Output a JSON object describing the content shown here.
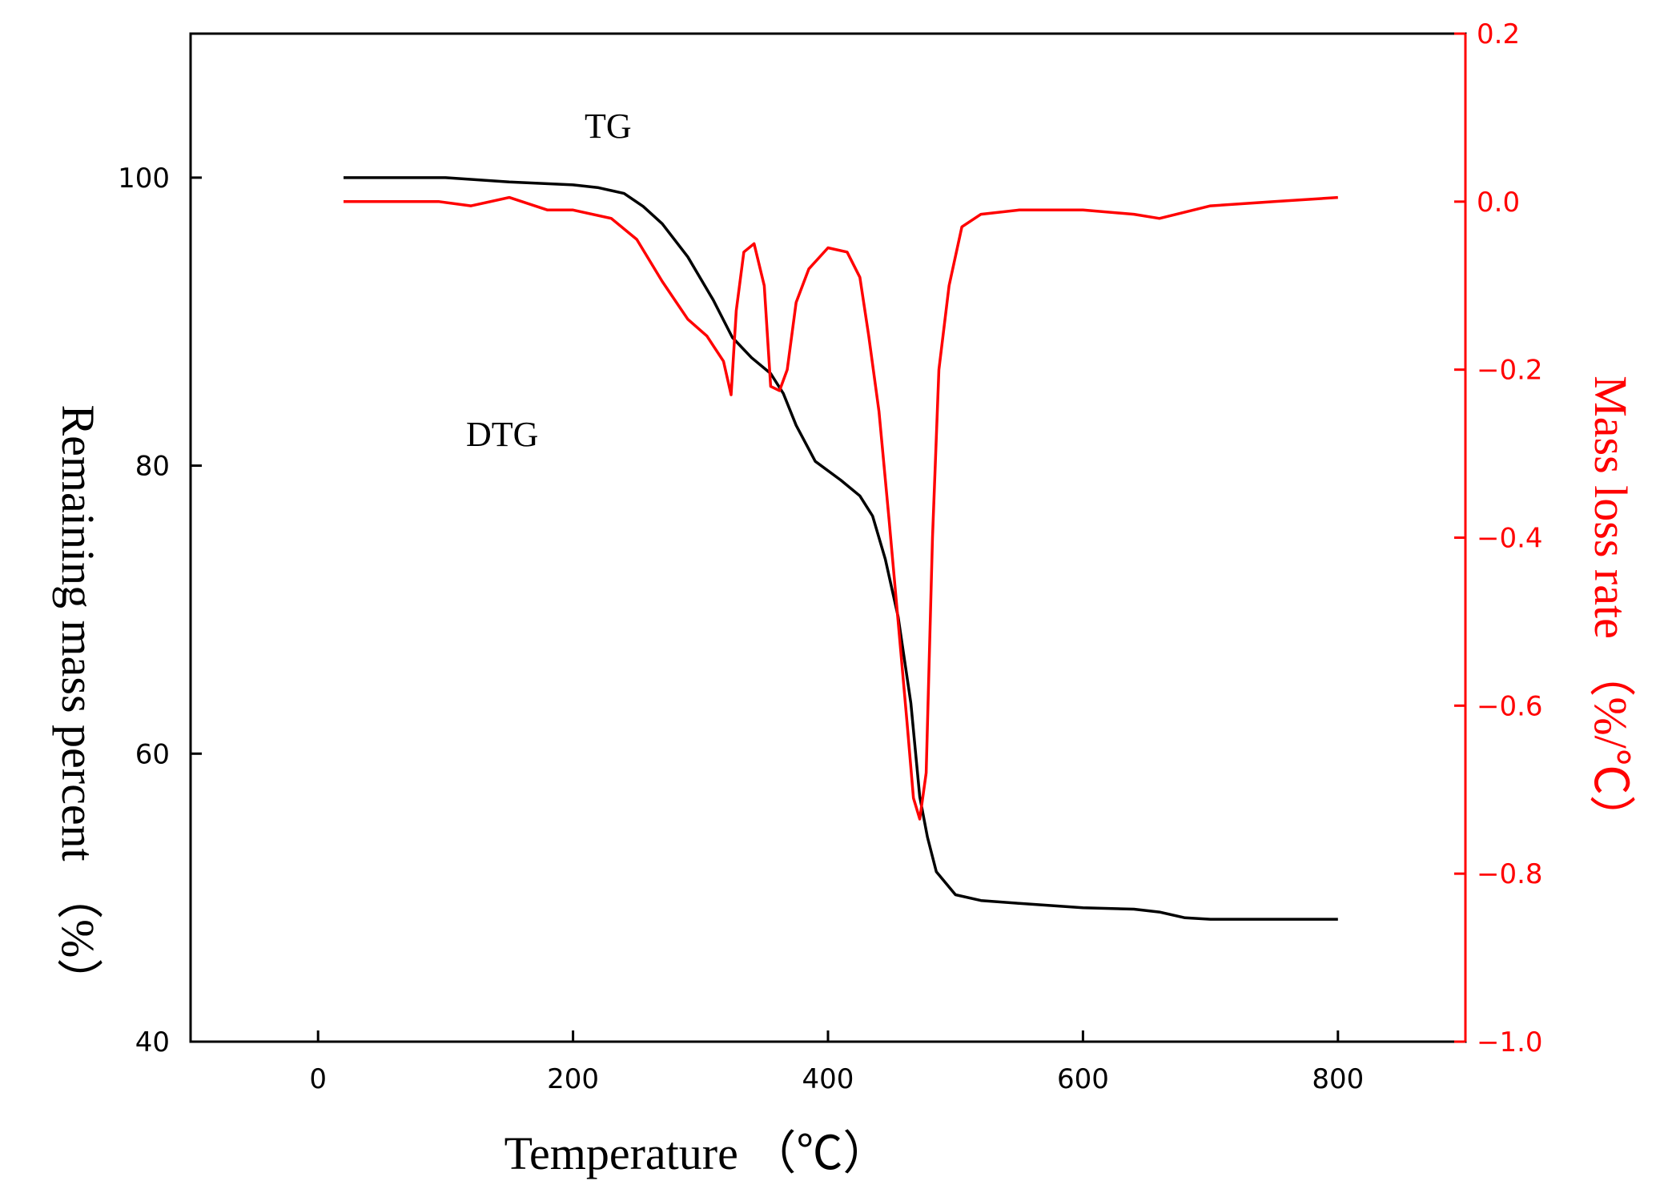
{
  "colors": {
    "tg_line": "#000000",
    "dtg_line": "#ff0000",
    "right_axis": "#ff0000",
    "frame": "#000000",
    "background": "#ffffff"
  },
  "chart_data": {
    "type": "line",
    "xlabel": "Temperature （℃）",
    "ylabel_left": "Remaining mass percent （%）",
    "ylabel_right": "Mass loss rate （%/℃）",
    "xlim": [
      -100,
      900
    ],
    "ylim_left": [
      40,
      110
    ],
    "ylim_right": [
      -1.0,
      0.2
    ],
    "x_ticks": [
      0,
      200,
      400,
      600,
      800
    ],
    "y_left_ticks": [
      40,
      60,
      80,
      100
    ],
    "y_right_ticks": [
      "0.2",
      "0.0",
      "−0.2",
      "−0.4",
      "−0.6",
      "−0.8",
      "−1.0"
    ],
    "grid": false,
    "annotations": [
      "TG",
      "DTG"
    ],
    "series": [
      {
        "axis": "left",
        "x": [
          20,
          100,
          150,
          200,
          220,
          240,
          255,
          270,
          290,
          310,
          325,
          340,
          355,
          365,
          375,
          390,
          410,
          425,
          435,
          445,
          455,
          465,
          472,
          478,
          485,
          500,
          520,
          550,
          600,
          640,
          660,
          680,
          700,
          750,
          800
        ],
        "values": [
          100.0,
          100.0,
          99.7,
          99.5,
          99.3,
          98.9,
          98.0,
          96.8,
          94.5,
          91.5,
          88.9,
          87.5,
          86.4,
          85.0,
          82.8,
          80.3,
          79.0,
          77.9,
          76.5,
          73.5,
          69.5,
          63.5,
          57.0,
          54.2,
          51.8,
          50.2,
          49.8,
          49.6,
          49.3,
          49.2,
          49.0,
          48.6,
          48.5,
          48.5,
          48.5
        ]
      },
      {
        "axis": "right",
        "x": [
          20,
          80,
          95,
          120,
          150,
          180,
          200,
          230,
          250,
          270,
          290,
          305,
          318,
          324,
          328,
          334,
          342,
          350,
          355,
          362,
          368,
          375,
          385,
          400,
          415,
          425,
          432,
          440,
          448,
          455,
          462,
          467,
          472,
          477,
          482,
          487,
          495,
          505,
          520,
          550,
          600,
          640,
          660,
          700,
          750,
          800
        ],
        "values": [
          0.0,
          0.0,
          0.0,
          -0.005,
          0.005,
          -0.01,
          -0.01,
          -0.02,
          -0.045,
          -0.095,
          -0.14,
          -0.16,
          -0.19,
          -0.23,
          -0.13,
          -0.06,
          -0.05,
          -0.1,
          -0.22,
          -0.225,
          -0.2,
          -0.12,
          -0.08,
          -0.055,
          -0.06,
          -0.09,
          -0.16,
          -0.25,
          -0.38,
          -0.5,
          -0.62,
          -0.71,
          -0.735,
          -0.68,
          -0.4,
          -0.2,
          -0.1,
          -0.03,
          -0.015,
          -0.01,
          -0.01,
          -0.015,
          -0.02,
          -0.005,
          0.0,
          0.005
        ]
      }
    ]
  }
}
